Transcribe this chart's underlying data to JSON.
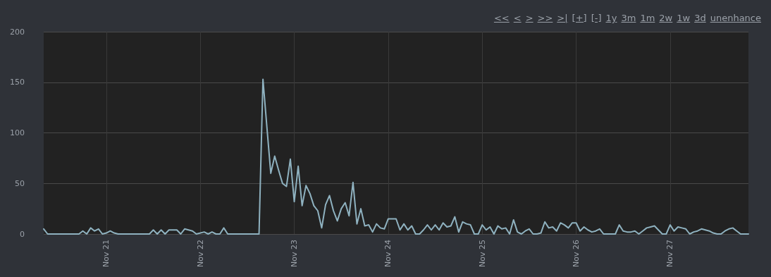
{
  "chart_data": {
    "type": "line",
    "color": "#8fb2c0",
    "annotations": [
      "<<",
      "<",
      ">",
      ">>",
      ">|",
      "[+]",
      "[-]",
      "1y",
      "3m",
      "1m",
      "2w",
      "1w",
      "3d",
      "unenhance"
    ],
    "x": [
      "--11-20T08:00",
      "--11-20T09:00",
      "--11-20T17:00",
      "--11-20T18:00",
      "--11-20T19:00",
      "--11-20T20:00",
      "--11-20T21:00",
      "--11-20T22:00",
      "--11-20T23:00",
      "--11-21T00:00",
      "--11-21T01:00",
      "--11-21T02:00",
      "--11-21T03:00",
      "--11-21T11:00",
      "--11-21T12:00",
      "--11-21T13:00",
      "--11-21T14:00",
      "--11-21T15:00",
      "--11-21T16:00",
      "--11-21T18:00",
      "--11-21T19:00",
      "--11-21T20:00",
      "--11-21T21:00",
      "--11-21T22:00",
      "--11-21T23:00",
      "--11-22T01:00",
      "--11-22T02:00",
      "--11-22T03:00",
      "--11-22T04:00",
      "--11-22T05:00",
      "--11-22T06:00",
      "--11-22T07:00",
      "--11-22T15:00",
      "--11-22T16:00",
      "--11-22T17:00",
      "--11-22T18:00",
      "--11-22T19:00",
      "--11-22T20:00",
      "--11-22T21:00",
      "--11-22T22:00",
      "--11-22T23:00",
      "--11-23T00:00",
      "--11-23T01:00",
      "--11-23T02:00",
      "--11-23T03:00",
      "--11-23T04:00",
      "--11-23T05:00",
      "--11-23T06:00",
      "--11-23T07:00",
      "--11-23T08:00",
      "--11-23T09:00",
      "--11-23T10:00",
      "--11-23T11:00",
      "--11-23T12:00",
      "--11-23T13:00",
      "--11-23T14:00",
      "--11-23T15:00",
      "--11-23T16:00",
      "--11-23T17:00",
      "--11-23T18:00",
      "--11-23T19:00",
      "--11-23T20:00",
      "--11-23T21:00",
      "--11-23T22:00",
      "--11-23T23:00",
      "--11-24T00:00",
      "--11-24T01:00",
      "--11-24T02:00",
      "--11-24T03:00",
      "--11-24T04:00",
      "--11-24T05:00",
      "--11-24T06:00",
      "--11-24T07:00",
      "--11-24T08:00",
      "--11-24T09:00",
      "--11-24T10:00",
      "--11-24T11:00",
      "--11-24T12:00",
      "--11-24T13:00",
      "--11-24T14:00",
      "--11-24T15:00",
      "--11-24T16:00",
      "--11-24T17:00",
      "--11-24T18:00",
      "--11-24T19:00",
      "--11-24T20:00",
      "--11-24T21:00",
      "--11-24T22:00",
      "--11-24T23:00",
      "--11-25T00:00",
      "--11-25T01:00",
      "--11-25T02:00",
      "--11-25T03:00",
      "--11-25T04:00",
      "--11-25T05:00",
      "--11-25T06:00",
      "--11-25T07:00",
      "--11-25T08:00",
      "--11-25T09:00",
      "--11-25T10:00",
      "--11-25T11:00",
      "--11-25T12:00",
      "--11-25T13:00",
      "--11-25T14:00",
      "--11-25T15:00",
      "--11-25T16:00",
      "--11-25T17:00",
      "--11-25T18:00",
      "--11-25T19:00",
      "--11-25T20:00",
      "--11-25T21:00",
      "--11-25T22:00",
      "--11-25T23:00",
      "--11-26T00:00",
      "--11-26T01:00",
      "--11-26T02:00",
      "--11-26T03:00",
      "--11-26T04:00",
      "--11-26T05:00",
      "--11-26T06:00",
      "--11-26T07:00",
      "--11-26T10:00",
      "--11-26T11:00",
      "--11-26T12:00",
      "--11-26T13:00",
      "--11-26T14:00",
      "--11-26T15:00",
      "--11-26T16:00",
      "--11-26T17:00",
      "--11-26T18:00",
      "--11-26T19:00",
      "--11-26T20:00",
      "--11-26T21:00",
      "--11-26T22:00",
      "--11-26T23:00",
      "--11-27T00:00",
      "--11-27T01:00",
      "--11-27T02:00",
      "--11-27T03:00",
      "--11-27T04:00",
      "--11-27T05:00",
      "--11-27T06:00",
      "--11-27T07:00",
      "--11-27T08:00",
      "--11-27T09:00",
      "--11-27T10:00",
      "--11-27T11:00",
      "--11-27T12:00",
      "--11-27T13:00",
      "--11-27T14:00",
      "--11-27T15:00",
      "--11-27T16:00",
      "--11-27T17:00",
      "--11-27T18:00",
      "--11-27T20:00"
    ],
    "values": [
      5,
      0,
      0,
      3,
      0,
      6,
      3,
      5,
      0,
      1,
      3,
      1,
      0,
      0,
      4,
      0,
      4,
      0,
      4,
      4,
      0,
      5,
      4,
      3,
      0,
      2,
      0,
      2,
      0,
      0,
      6,
      0,
      0,
      153,
      106,
      60,
      77,
      63,
      50,
      47,
      74,
      32,
      67,
      28,
      48,
      40,
      28,
      23,
      6,
      29,
      38,
      23,
      13,
      25,
      31,
      18,
      51,
      10,
      25,
      8,
      9,
      2,
      10,
      6,
      5,
      15,
      15,
      15,
      4,
      10,
      4,
      8,
      0,
      0,
      4,
      9,
      4,
      9,
      4,
      11,
      7,
      8,
      17,
      2,
      12,
      10,
      9,
      0,
      0,
      9,
      4,
      7,
      0,
      8,
      5,
      6,
      0,
      14,
      2,
      0,
      3,
      5,
      0,
      0,
      1,
      12,
      6,
      7,
      3,
      11,
      9,
      6,
      11,
      11,
      3,
      7,
      4,
      2,
      3,
      5,
      0,
      0,
      9,
      3,
      2,
      2,
      3,
      0,
      3,
      6,
      7,
      8,
      4,
      0,
      0,
      9,
      3,
      7,
      6,
      5,
      0,
      2,
      3,
      5,
      4,
      3,
      1,
      0,
      0,
      3,
      5,
      6,
      3,
      0,
      0
    ],
    "xlim": [
      "--11-20T08:00",
      "--11-27T20:00"
    ],
    "xticks": [
      {
        "value": "--11-21",
        "label": "Nov 21"
      },
      {
        "value": "--11-22",
        "label": "Nov 22"
      },
      {
        "value": "--11-23",
        "label": "Nov 23"
      },
      {
        "value": "--11-24",
        "label": "Nov 24"
      },
      {
        "value": "--11-25",
        "label": "Nov 25"
      },
      {
        "value": "--11-26",
        "label": "Nov 26"
      },
      {
        "value": "--11-27",
        "label": "Nov 27"
      }
    ],
    "ylim": [
      0,
      200
    ],
    "yticks": [
      0,
      50,
      100,
      150,
      200
    ],
    "grid": true,
    "marker": "none",
    "line_style": "solid"
  }
}
